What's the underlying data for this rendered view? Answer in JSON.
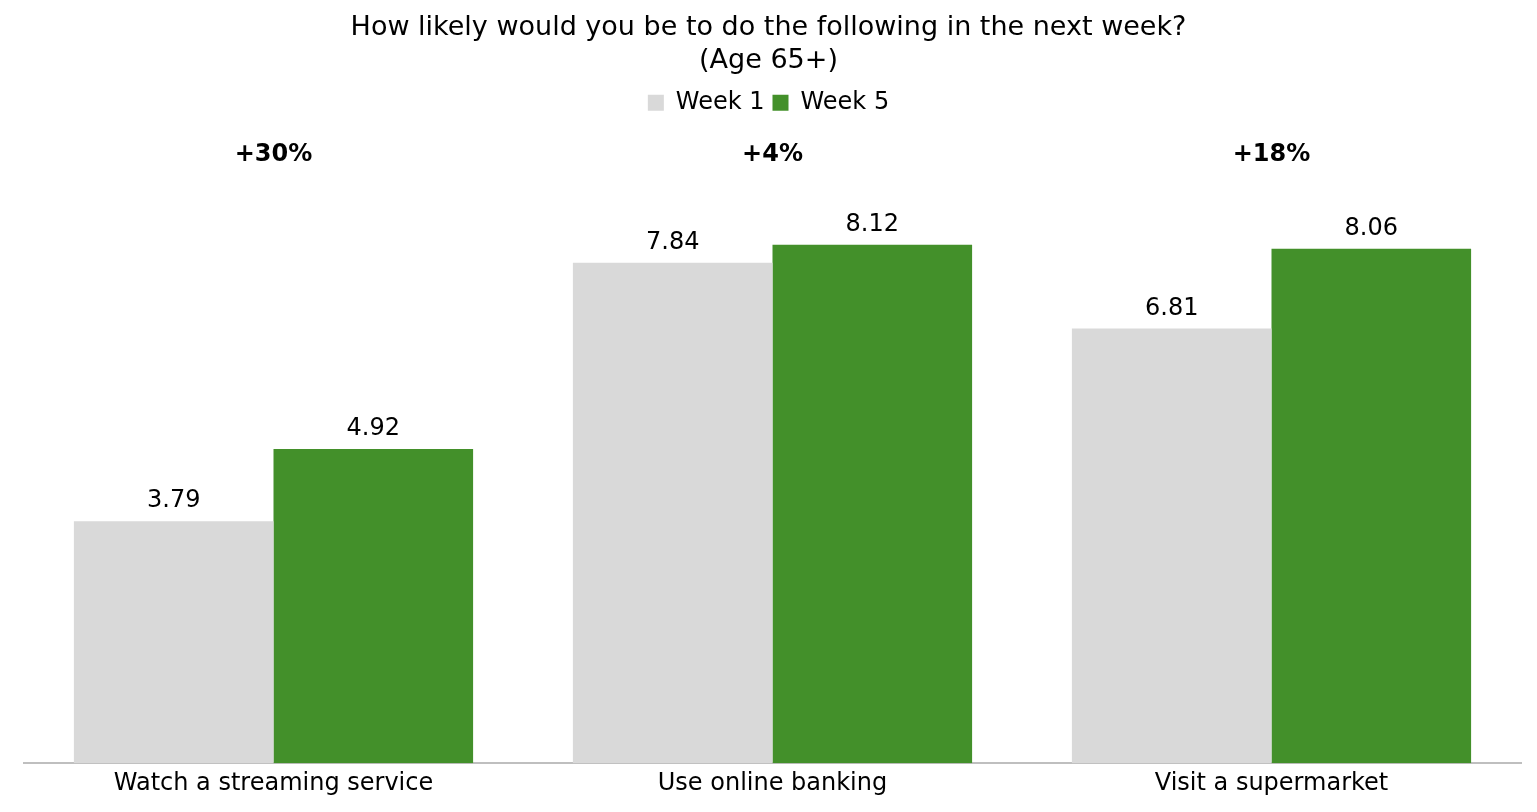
{
  "chart_data": {
    "type": "bar",
    "title": "How likely would you be to do the following in the next week?\n(Age 65+)",
    "categories": [
      "Watch a streaming service",
      "Use online banking",
      "Visit a supermarket"
    ],
    "series": [
      {
        "name": "Week 1",
        "color": "#d9d9d9",
        "values": [
          3.79,
          7.84,
          6.81
        ]
      },
      {
        "name": "Week 5",
        "color": "#43902a",
        "values": [
          4.92,
          8.12,
          8.06
        ]
      }
    ],
    "data_labels": true,
    "annotations": [
      "+30%",
      "+4%",
      "+18%"
    ],
    "grid": false,
    "legend": "top"
  }
}
